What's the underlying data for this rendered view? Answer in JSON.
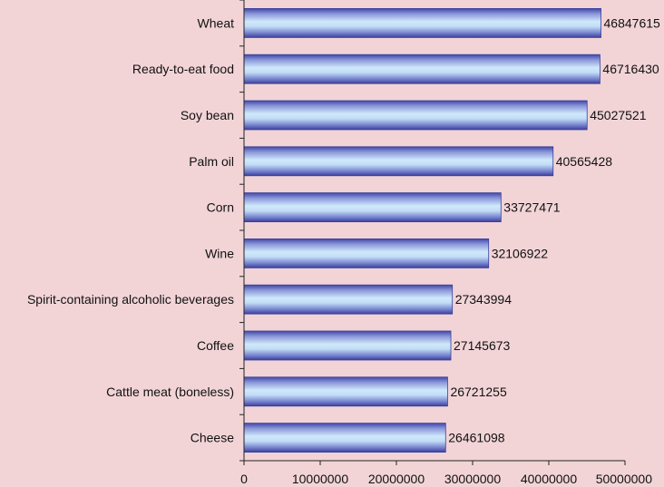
{
  "chart_data": {
    "type": "bar",
    "orientation": "horizontal",
    "categories": [
      "Wheat",
      "Ready-to-eat food",
      "Soy bean",
      "Palm oil",
      "Corn",
      "Wine",
      "Spirit-containing alcoholic beverages",
      "Coffee",
      "Cattle meat (boneless)",
      "Cheese"
    ],
    "values": [
      46847615,
      46716430,
      45027521,
      40565428,
      33727471,
      32106922,
      27343994,
      27145673,
      26721255,
      26461098
    ],
    "value_labels": [
      "46847615",
      "46716430",
      "45027521",
      "40565428",
      "33727471",
      "32106922",
      "27343994",
      "27145673",
      "26721255",
      "26461098"
    ],
    "xlim": [
      0,
      50000000
    ],
    "x_ticks": [
      0,
      10000000,
      20000000,
      30000000,
      40000000,
      50000000
    ],
    "x_tick_labels": [
      "0",
      "10000000",
      "20000000",
      "30000000",
      "40000000",
      "50000000"
    ],
    "title": "",
    "xlabel": "",
    "ylabel": "",
    "legend": "none",
    "grid": false,
    "colors": {
      "background": "#f2d4d7",
      "bar_edge": "#3a3f9a",
      "bar_dark": "#4048a8",
      "bar_light": "#cfe8fb",
      "axis": "#222222"
    }
  }
}
